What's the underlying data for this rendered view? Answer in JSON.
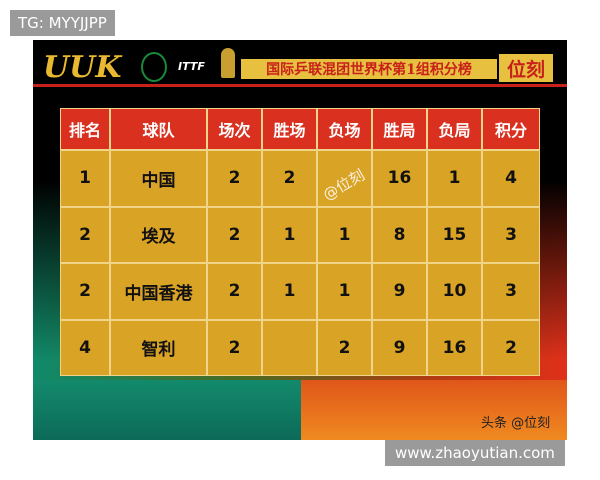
{
  "overlays": {
    "top": "TG: MYYJJPP",
    "bottom": "www.zhaoyutian.com"
  },
  "header": {
    "logo": "UUK",
    "ittf": "ITTF",
    "title": "国际乒联混团世界杯第1组积分榜",
    "brand": "位刻"
  },
  "table": {
    "columns": [
      "排名",
      "球队",
      "场次",
      "胜场",
      "负场",
      "胜局",
      "负局",
      "积分"
    ],
    "rows": [
      [
        "1",
        "中国",
        "2",
        "2",
        null,
        "16",
        "1",
        "4"
      ],
      [
        "2",
        "埃及",
        "2",
        "1",
        "1",
        "8",
        "15",
        "3"
      ],
      [
        "2",
        "中国香港",
        "2",
        "1",
        "1",
        "9",
        "10",
        "3"
      ],
      [
        "4",
        "智利",
        "2",
        null,
        "2",
        "9",
        "16",
        "2"
      ]
    ]
  },
  "watermarks": {
    "table": "@位刻",
    "corner": "头条 @位刻"
  }
}
